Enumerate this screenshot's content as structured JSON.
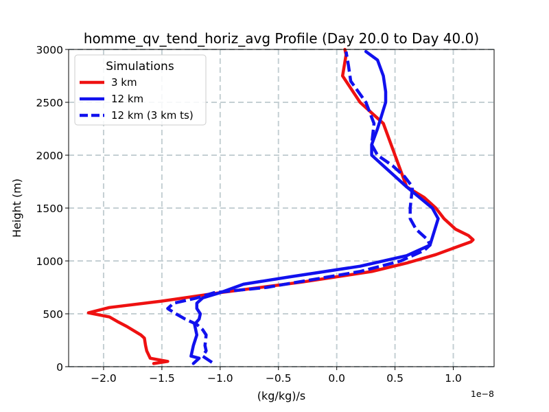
{
  "chart_data": {
    "type": "line",
    "title": "homme_qv_tend_horiz_avg Profile (Day 20.0 to Day 40.0)",
    "xlabel": "(kg/kg)/s",
    "ylabel": "Height (m)",
    "x_offset_label": "1e−8",
    "xlim": [
      -2.3,
      1.35
    ],
    "ylim": [
      0,
      3000
    ],
    "xticks": [
      -2.0,
      -1.5,
      -1.0,
      -0.5,
      0.0,
      0.5,
      1.0
    ],
    "xtick_labels": [
      "−2.0",
      "−1.5",
      "−1.0",
      "−0.5",
      "0.0",
      "0.5",
      "1.0"
    ],
    "yticks": [
      0,
      500,
      1000,
      1500,
      2000,
      2500,
      3000
    ],
    "ytick_labels": [
      "0",
      "500",
      "1000",
      "1500",
      "2000",
      "2500",
      "3000"
    ],
    "grid": true,
    "legend": {
      "title": "Simulations",
      "location": "upper-left"
    },
    "series": [
      {
        "name": "3 km",
        "color": "#ee1111",
        "dash": "solid",
        "x": [
          -1.57,
          -1.45,
          -1.6,
          -1.63,
          -1.64,
          -1.65,
          -1.68,
          -1.8,
          -1.87,
          -1.95,
          -2.13,
          -1.95,
          -1.5,
          -1.0,
          -0.3,
          0.3,
          0.6,
          0.85,
          1.05,
          1.15,
          1.17,
          1.13,
          1.02,
          0.92,
          0.85,
          0.75,
          0.6,
          0.5,
          0.4,
          0.3,
          0.2,
          0.05,
          0.08,
          0.07
        ],
        "y": [
          30,
          50,
          80,
          150,
          200,
          270,
          300,
          380,
          420,
          470,
          510,
          560,
          620,
          700,
          800,
          900,
          980,
          1060,
          1140,
          1180,
          1200,
          1240,
          1300,
          1400,
          1500,
          1600,
          1700,
          2000,
          2300,
          2400,
          2500,
          2750,
          2950,
          3000
        ]
      },
      {
        "name": "12 km",
        "color": "#1111ee",
        "dash": "solid",
        "x": [
          -1.23,
          -1.18,
          -1.25,
          -1.23,
          -1.2,
          -1.22,
          -1.18,
          -1.17,
          -1.2,
          -1.2,
          -1.15,
          -1.0,
          -0.8,
          -0.4,
          0.2,
          0.6,
          0.8,
          0.87,
          0.82,
          0.6,
          0.4,
          0.3,
          0.3,
          0.35,
          0.42,
          0.42,
          0.4,
          0.35,
          0.25
        ],
        "y": [
          30,
          80,
          100,
          200,
          300,
          400,
          450,
          500,
          550,
          600,
          650,
          700,
          780,
          850,
          950,
          1050,
          1150,
          1400,
          1500,
          1700,
          1900,
          2000,
          2100,
          2250,
          2500,
          2600,
          2750,
          2900,
          2980
        ]
      },
      {
        "name": "12 km (3 km ts)",
        "color": "#1111ee",
        "dash": "dashed",
        "x": [
          -1.07,
          -1.15,
          -1.12,
          -1.13,
          -1.12,
          -1.15,
          -1.2,
          -1.3,
          -1.38,
          -1.45,
          -1.4,
          -1.2,
          -1.05,
          -0.6,
          0.2,
          0.55,
          0.75,
          0.8,
          0.78,
          0.68,
          0.63,
          0.63,
          0.65,
          0.58,
          0.48,
          0.35,
          0.3,
          0.32,
          0.25,
          0.12,
          0.1,
          0.08
        ],
        "y": [
          40,
          100,
          150,
          200,
          300,
          350,
          400,
          450,
          500,
          550,
          600,
          650,
          700,
          750,
          900,
          1000,
          1100,
          1150,
          1200,
          1300,
          1400,
          1500,
          1700,
          1800,
          1900,
          2000,
          2100,
          2300,
          2500,
          2700,
          2850,
          2980
        ]
      }
    ]
  }
}
